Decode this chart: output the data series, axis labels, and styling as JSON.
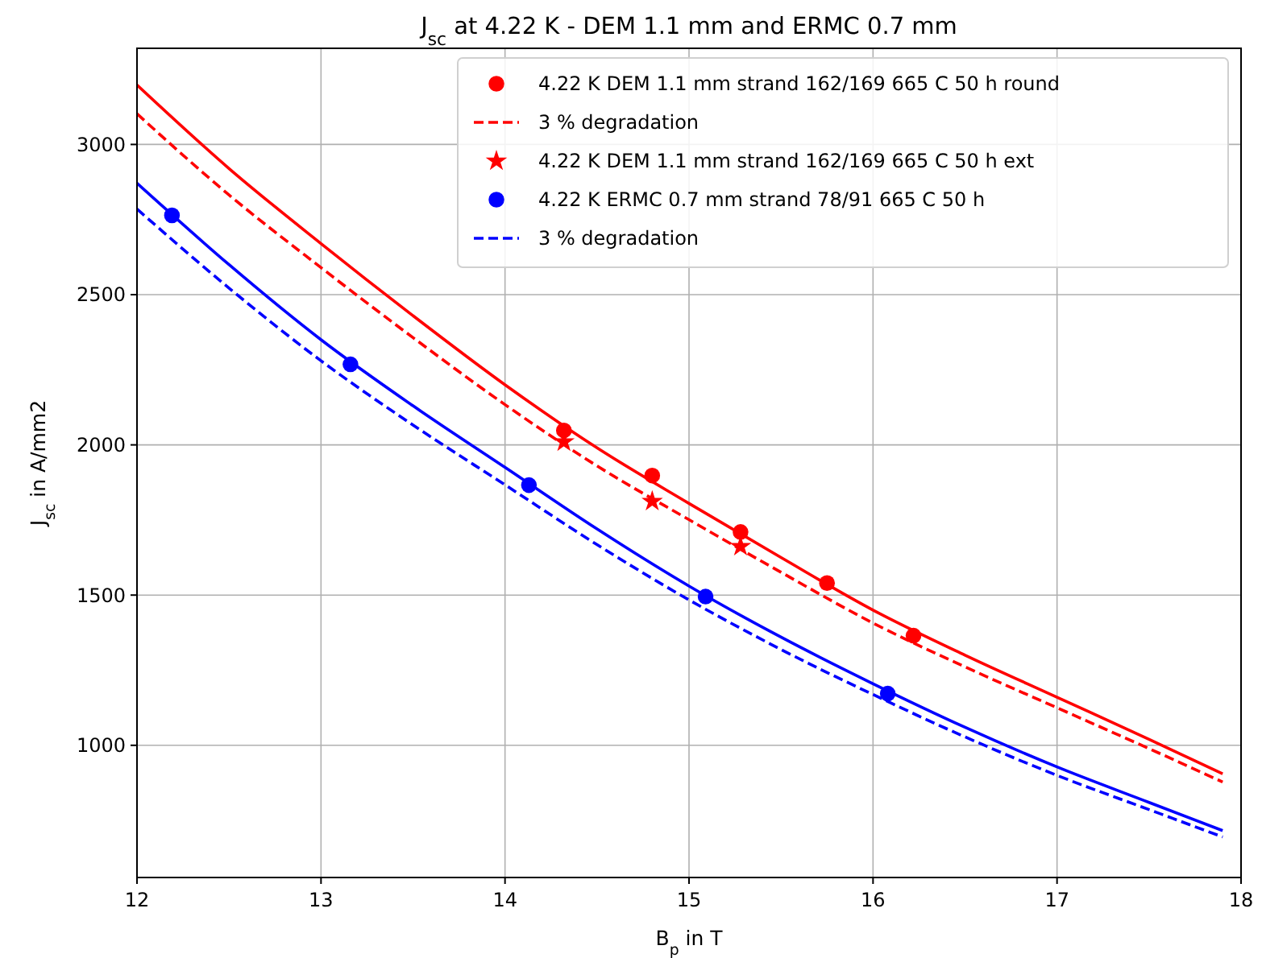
{
  "chart_data": {
    "type": "line",
    "title": "J$_{sc}$ at 4.22 K - DEM 1.1 mm and ERMC 0.7 mm",
    "xlabel": "B$_{p}$ in T",
    "ylabel": "J$_{sc}$ in A/mm2",
    "xlim": [
      12,
      18
    ],
    "xticks": [
      12,
      13,
      14,
      15,
      16,
      17,
      18
    ],
    "ylim": [
      560,
      3320
    ],
    "yticks": [
      1000,
      1500,
      2000,
      2500,
      3000
    ],
    "grid": true,
    "legend": "top right",
    "series": [
      {
        "type": "scatter",
        "name": "4.22 K DEM 1.1 mm strand 162/169 665 C 50 h round",
        "color": "#ff0000",
        "marker": "circle",
        "x": [
          14.32,
          14.8,
          15.28,
          15.75,
          16.22
        ],
        "values": [
          2048,
          1898,
          1710,
          1540,
          1365
        ]
      },
      {
        "type": "line",
        "name": "3 % degradation",
        "color": "#ff0000",
        "line_style": "dashed",
        "x": [
          12,
          12.5,
          13,
          13.5,
          14,
          14.5,
          15,
          15.5,
          16,
          16.5,
          17,
          17.5,
          17.9
        ],
        "values": [
          3102,
          2832,
          2590,
          2357,
          2134,
          1930,
          1751,
          1576,
          1407,
          1261,
          1125,
          989,
          878
        ]
      },
      {
        "type": "scatter",
        "name": "4.22 K DEM 1.1 mm strand 162/169 665 C 50 h ext",
        "color": "#ff0000",
        "marker": "star",
        "x": [
          14.32,
          14.8,
          15.28
        ],
        "values": [
          2010,
          1812,
          1662
        ]
      },
      {
        "type": "scatter",
        "name": "4.22 K ERMC 0.7 mm strand 78/91 665 C 50 h",
        "color": "#0000ff",
        "marker": "circle",
        "x": [
          12.19,
          13.16,
          14.13,
          15.09,
          16.08
        ],
        "values": [
          2764,
          2268,
          1866,
          1495,
          1172
        ]
      },
      {
        "type": "line",
        "name": "3 % degradation",
        "color": "#0000ff",
        "line_style": "dashed",
        "x": [
          12,
          12.5,
          13,
          13.5,
          14,
          14.5,
          15,
          15.5,
          16,
          16.5,
          17,
          17.5,
          17.9
        ],
        "values": [
          2785,
          2522,
          2280,
          2066,
          1867,
          1668,
          1484,
          1319,
          1169,
          1028,
          900,
          786,
          695
        ]
      },
      {
        "type": "line",
        "color": "#ff0000",
        "line_style": "solid",
        "x": [
          12,
          12.5,
          13,
          13.5,
          14,
          14.5,
          15,
          15.5,
          16,
          16.5,
          17,
          17.5,
          17.9
        ],
        "values": [
          3198,
          2920,
          2670,
          2430,
          2200,
          1990,
          1805,
          1625,
          1450,
          1300,
          1160,
          1020,
          905
        ]
      },
      {
        "type": "line",
        "color": "#0000ff",
        "line_style": "solid",
        "x": [
          12,
          12.5,
          13,
          13.5,
          14,
          14.5,
          15,
          15.5,
          16,
          16.5,
          17,
          17.5,
          17.9
        ],
        "values": [
          2871,
          2600,
          2350,
          2130,
          1925,
          1720,
          1530,
          1360,
          1205,
          1060,
          928,
          810,
          716
        ]
      }
    ]
  }
}
